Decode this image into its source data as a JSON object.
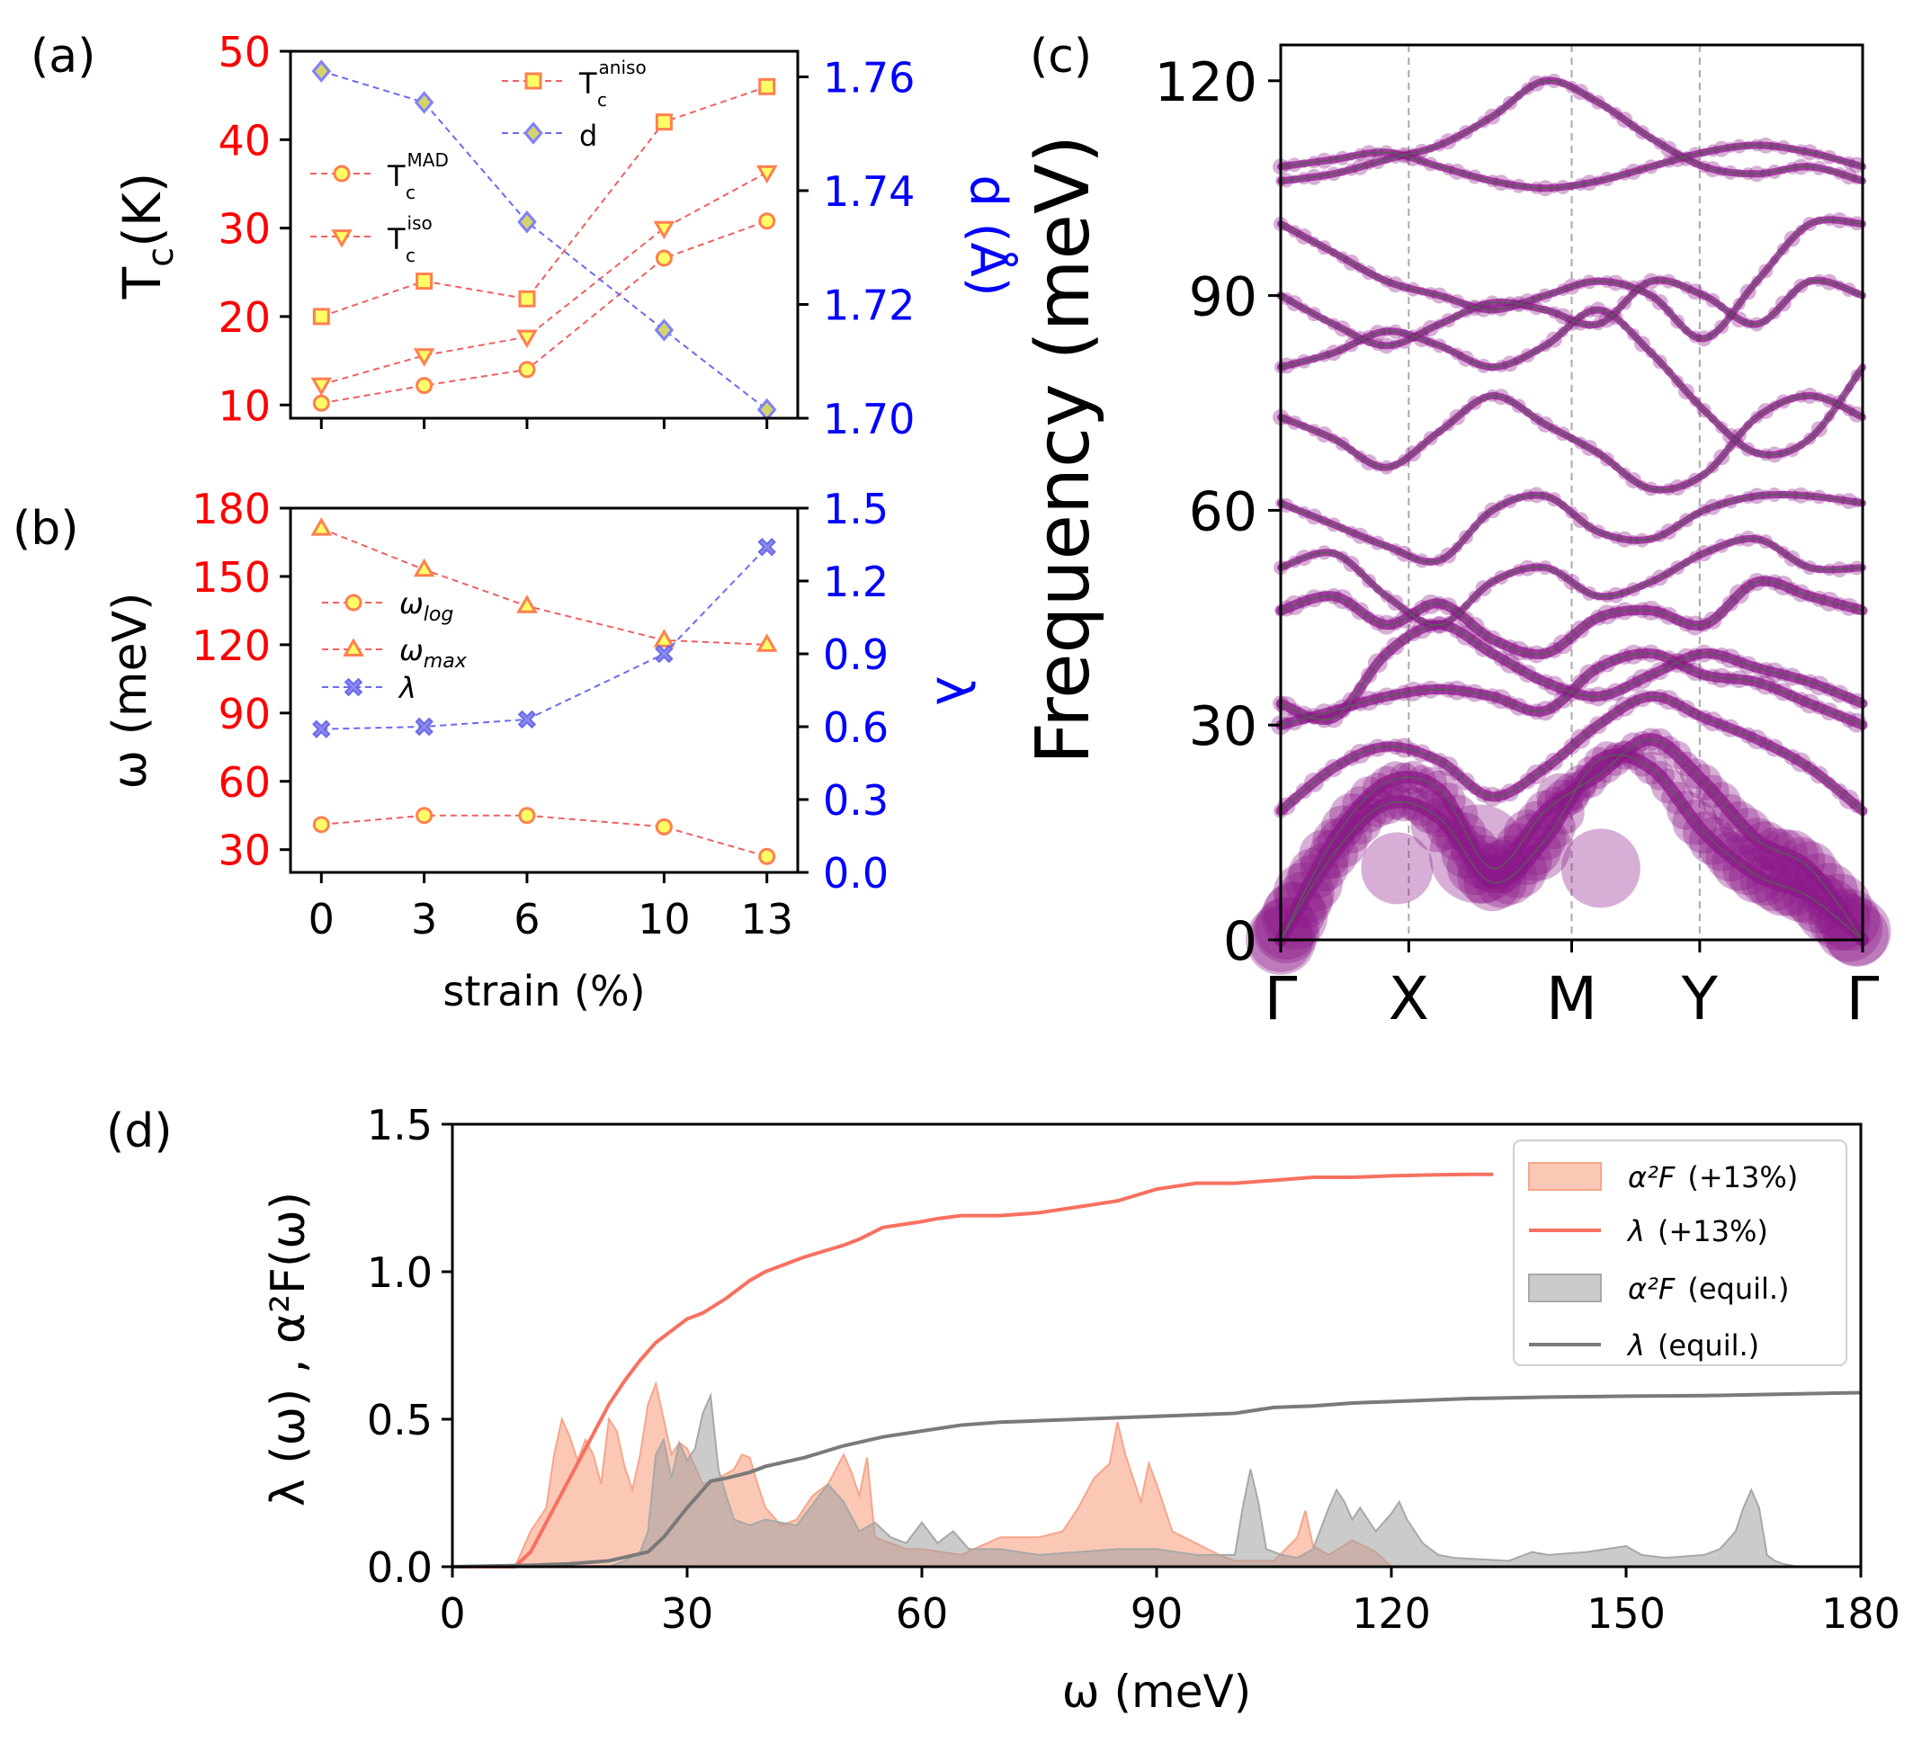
{
  "figure": {
    "colors": {
      "red": "#ff0000",
      "blue": "#0000ff",
      "salmon": "#fa8072",
      "markerYellow": "#ffff66",
      "markerEdge": "#ff7f50",
      "diamondEdge": "#8080ff",
      "diamondFill": "#d4d46a",
      "purple": "#8b1a89",
      "gray": "#808080",
      "black": "#000000"
    }
  },
  "chart_data": [
    {
      "id": "a",
      "panel_label": "(a)",
      "type": "line",
      "x": [
        0,
        3,
        6,
        10,
        13
      ],
      "xticks": [
        "0",
        "3",
        "6",
        "10",
        "13"
      ],
      "ylabel_left": "T",
      "ylabel_left_sub": "c",
      "ylabel_left_rest": "(K)",
      "ylim_left": [
        8.5,
        50
      ],
      "yticks_left": [
        "10",
        "20",
        "30",
        "40",
        "50"
      ],
      "ylabel_right": "d (Å)",
      "ylim_right": [
        1.7,
        1.7645
      ],
      "yticks_right": [
        "1.70",
        "1.72",
        "1.74",
        "1.76"
      ],
      "series": [
        {
          "name": "T_c^MAD",
          "label": "T",
          "sub": "c",
          "sup": "MAD",
          "axis": "left",
          "marker": "circle",
          "values": [
            10.2,
            12.2,
            14.0,
            26.6,
            30.8
          ]
        },
        {
          "name": "T_c^iso",
          "label": "T",
          "sub": "c",
          "sup": "iso",
          "axis": "left",
          "marker": "triangle-down",
          "values": [
            12.3,
            15.6,
            17.7,
            30.0,
            36.3
          ]
        },
        {
          "name": "T_c^aniso",
          "label": "T",
          "sub": "c",
          "sup": "aniso",
          "axis": "left",
          "marker": "square",
          "values": [
            20.0,
            24.0,
            22.0,
            42.0,
            46.0
          ]
        },
        {
          "name": "d",
          "label": "d",
          "axis": "right",
          "marker": "diamond",
          "values": [
            1.761,
            1.7555,
            1.7345,
            1.7155,
            1.7015
          ]
        }
      ]
    },
    {
      "id": "b",
      "panel_label": "(b)",
      "type": "line",
      "x": [
        0,
        3,
        6,
        10,
        13
      ],
      "xticks": [
        "0",
        "3",
        "6",
        "10",
        "13"
      ],
      "xlabel": "strain (%)",
      "ylabel_left": "ω (meV)",
      "ylim_left": [
        20,
        180
      ],
      "yticks_left": [
        "30",
        "60",
        "90",
        "120",
        "150",
        "180"
      ],
      "ylabel_right": "λ",
      "ylim_right": [
        0,
        1.5
      ],
      "yticks_right": [
        "0.0",
        "0.3",
        "0.6",
        "0.9",
        "1.2",
        "1.5"
      ],
      "series": [
        {
          "name": "ω_log",
          "label": "ω",
          "sub": "log",
          "axis": "left",
          "marker": "circle",
          "values": [
            41,
            45,
            45,
            40,
            27
          ]
        },
        {
          "name": "ω_max",
          "label": "ω",
          "sub": "max",
          "axis": "left",
          "marker": "triangle-up",
          "values": [
            171,
            153,
            137,
            122,
            120
          ]
        },
        {
          "name": "λ",
          "label": "λ",
          "axis": "right",
          "marker": "x-filled",
          "values": [
            0.59,
            0.6,
            0.63,
            0.9,
            1.34
          ]
        }
      ]
    },
    {
      "id": "c",
      "panel_label": "(c)",
      "type": "line",
      "ylabel": "Frequency (meV)",
      "ylim": [
        0,
        125
      ],
      "yticks": [
        "0",
        "30",
        "60",
        "90",
        "120"
      ],
      "xticks": [
        "Γ",
        "X",
        "M",
        "Y",
        "Γ"
      ],
      "xtick_positions": [
        0,
        0.22,
        0.5,
        0.72,
        1.0
      ],
      "bands": [
        {
          "values": [
            0,
            12,
            19,
            17,
            8,
            14,
            25,
            24,
            15,
            9,
            6,
            0
          ],
          "weight": 3
        },
        {
          "values": [
            0,
            14,
            22,
            21,
            10,
            18,
            23,
            28,
            22,
            14,
            10,
            0
          ],
          "weight": 3
        },
        {
          "values": [
            18,
            24,
            27,
            25,
            20,
            24,
            30,
            34,
            31,
            28,
            24,
            18
          ],
          "weight": 2
        },
        {
          "values": [
            30,
            32,
            34,
            35,
            34,
            32,
            38,
            40,
            37,
            36,
            33,
            30
          ],
          "weight": 2
        },
        {
          "values": [
            33,
            31,
            40,
            44,
            40,
            36,
            34,
            37,
            40,
            38,
            36,
            33
          ],
          "weight": 2
        },
        {
          "values": [
            46,
            48,
            44,
            47,
            42,
            40,
            45,
            46,
            44,
            50,
            48,
            46
          ],
          "weight": 2
        },
        {
          "values": [
            52,
            54,
            48,
            44,
            50,
            52,
            48,
            50,
            54,
            56,
            52,
            52
          ],
          "weight": 1
        },
        {
          "values": [
            61,
            58,
            55,
            53,
            60,
            62,
            57,
            56,
            60,
            62,
            62,
            61
          ],
          "weight": 1
        },
        {
          "values": [
            73,
            70,
            66,
            71,
            76,
            72,
            68,
            63,
            65,
            73,
            76,
            73
          ],
          "weight": 1
        },
        {
          "values": [
            80,
            82,
            85,
            83,
            80,
            83,
            88,
            82,
            74,
            68,
            70,
            80
          ],
          "weight": 1
        },
        {
          "values": [
            90,
            86,
            83,
            86,
            89,
            88,
            86,
            92,
            90,
            86,
            92,
            90
          ],
          "weight": 1
        },
        {
          "values": [
            100,
            96,
            92,
            90,
            88,
            90,
            92,
            90,
            84,
            92,
            100,
            100
          ],
          "weight": 1
        },
        {
          "values": [
            106,
            107,
            109,
            111,
            115,
            120,
            117,
            112,
            108,
            107,
            108,
            106
          ],
          "weight": 1
        },
        {
          "values": [
            108,
            109,
            110,
            108,
            106,
            105,
            106,
            108,
            110,
            111,
            110,
            108
          ],
          "weight": 1
        }
      ]
    },
    {
      "id": "d",
      "panel_label": "(d)",
      "type": "area",
      "xlabel": "ω (meV)",
      "ylabel": "λ (ω) , α²F(ω)",
      "xlim": [
        0,
        180
      ],
      "ylim": [
        0,
        1.5
      ],
      "xticks": [
        "0",
        "30",
        "60",
        "90",
        "120",
        "150",
        "180"
      ],
      "yticks": [
        "0.0",
        "0.5",
        "1.0",
        "1.5"
      ],
      "series": [
        {
          "name": "α²F (+13%)",
          "label_math": "α²F",
          "label_tag": "(+13%)",
          "kind": "area",
          "x": [
            0,
            8,
            10,
            12,
            13,
            14,
            15,
            16,
            17,
            18,
            19,
            20,
            21,
            22,
            23,
            24,
            25,
            26,
            27,
            28,
            29,
            30,
            32,
            34,
            36,
            37,
            38,
            39,
            40,
            42,
            44,
            46,
            48,
            50,
            51,
            52,
            53,
            54,
            56,
            58,
            60,
            65,
            70,
            75,
            78,
            80,
            82,
            84,
            85,
            86,
            88,
            89,
            90,
            92,
            95,
            98,
            100,
            105,
            108,
            109,
            110,
            112,
            115,
            118,
            120
          ],
          "y": [
            0,
            0,
            0.12,
            0.2,
            0.38,
            0.5,
            0.44,
            0.36,
            0.43,
            0.38,
            0.28,
            0.5,
            0.46,
            0.34,
            0.26,
            0.38,
            0.55,
            0.62,
            0.5,
            0.38,
            0.42,
            0.4,
            0.28,
            0.3,
            0.33,
            0.38,
            0.37,
            0.28,
            0.2,
            0.14,
            0.16,
            0.24,
            0.28,
            0.38,
            0.32,
            0.24,
            0.37,
            0.1,
            0.08,
            0.06,
            0.06,
            0.04,
            0.1,
            0.1,
            0.12,
            0.2,
            0.3,
            0.35,
            0.49,
            0.38,
            0.22,
            0.35,
            0.28,
            0.12,
            0.08,
            0.04,
            0.02,
            0.02,
            0.1,
            0.19,
            0.07,
            0.04,
            0.09,
            0.05,
            0
          ]
        },
        {
          "name": "λ (+13%)",
          "label_math": "λ",
          "label_tag": "(+13%)",
          "kind": "line",
          "x": [
            0,
            8,
            10,
            14,
            18,
            20,
            22,
            24,
            26,
            28,
            30,
            32,
            35,
            38,
            40,
            45,
            50,
            52,
            55,
            60,
            62,
            65,
            70,
            75,
            80,
            85,
            90,
            95,
            100,
            105,
            110,
            115,
            120,
            125,
            130,
            133
          ],
          "y": [
            0,
            0,
            0.05,
            0.25,
            0.45,
            0.55,
            0.63,
            0.7,
            0.76,
            0.8,
            0.84,
            0.86,
            0.91,
            0.97,
            1.0,
            1.05,
            1.09,
            1.11,
            1.15,
            1.17,
            1.18,
            1.19,
            1.19,
            1.2,
            1.22,
            1.24,
            1.28,
            1.3,
            1.3,
            1.31,
            1.32,
            1.32,
            1.325,
            1.328,
            1.33,
            1.33
          ]
        },
        {
          "name": "α²F (equil.)",
          "label_math": "α²F",
          "label_tag": "(equil.)",
          "kind": "area",
          "x": [
            0,
            20,
            22,
            24,
            25,
            26,
            27,
            28,
            29,
            30,
            31,
            32,
            33,
            34,
            35,
            36,
            38,
            40,
            44,
            48,
            50,
            52,
            54,
            56,
            58,
            60,
            62,
            64,
            66,
            70,
            75,
            80,
            85,
            90,
            95,
            100,
            101,
            102,
            103,
            104,
            106,
            108,
            110,
            112,
            113,
            114,
            115,
            116,
            118,
            120,
            121,
            122,
            124,
            126,
            128,
            135,
            138,
            140,
            145,
            150,
            152,
            155,
            160,
            162,
            164,
            165,
            166,
            167,
            168,
            169,
            170,
            172
          ],
          "y": [
            0,
            0,
            0.02,
            0.05,
            0.12,
            0.38,
            0.43,
            0.3,
            0.42,
            0.36,
            0.4,
            0.52,
            0.58,
            0.33,
            0.24,
            0.16,
            0.14,
            0.16,
            0.14,
            0.28,
            0.22,
            0.12,
            0.15,
            0.1,
            0.08,
            0.15,
            0.08,
            0.12,
            0.06,
            0.06,
            0.04,
            0.05,
            0.06,
            0.06,
            0.04,
            0.04,
            0.2,
            0.33,
            0.22,
            0.06,
            0.04,
            0.03,
            0.06,
            0.2,
            0.26,
            0.22,
            0.16,
            0.2,
            0.12,
            0.18,
            0.22,
            0.16,
            0.08,
            0.04,
            0.03,
            0.02,
            0.05,
            0.04,
            0.05,
            0.07,
            0.04,
            0.03,
            0.04,
            0.06,
            0.12,
            0.2,
            0.26,
            0.2,
            0.04,
            0.02,
            0.01,
            0
          ]
        },
        {
          "name": "λ (equil.)",
          "label_math": "λ",
          "label_tag": "(equil.)",
          "kind": "line",
          "x": [
            0,
            10,
            15,
            20,
            25,
            27,
            30,
            33,
            35,
            38,
            40,
            45,
            50,
            55,
            60,
            65,
            70,
            75,
            80,
            85,
            90,
            95,
            100,
            105,
            110,
            115,
            120,
            130,
            140,
            150,
            160,
            170,
            180
          ],
          "y": [
            0,
            0.005,
            0.01,
            0.02,
            0.05,
            0.1,
            0.2,
            0.29,
            0.3,
            0.32,
            0.34,
            0.37,
            0.41,
            0.44,
            0.46,
            0.48,
            0.49,
            0.495,
            0.5,
            0.505,
            0.51,
            0.515,
            0.52,
            0.54,
            0.545,
            0.555,
            0.56,
            0.57,
            0.575,
            0.578,
            0.58,
            0.585,
            0.59
          ]
        }
      ]
    }
  ]
}
